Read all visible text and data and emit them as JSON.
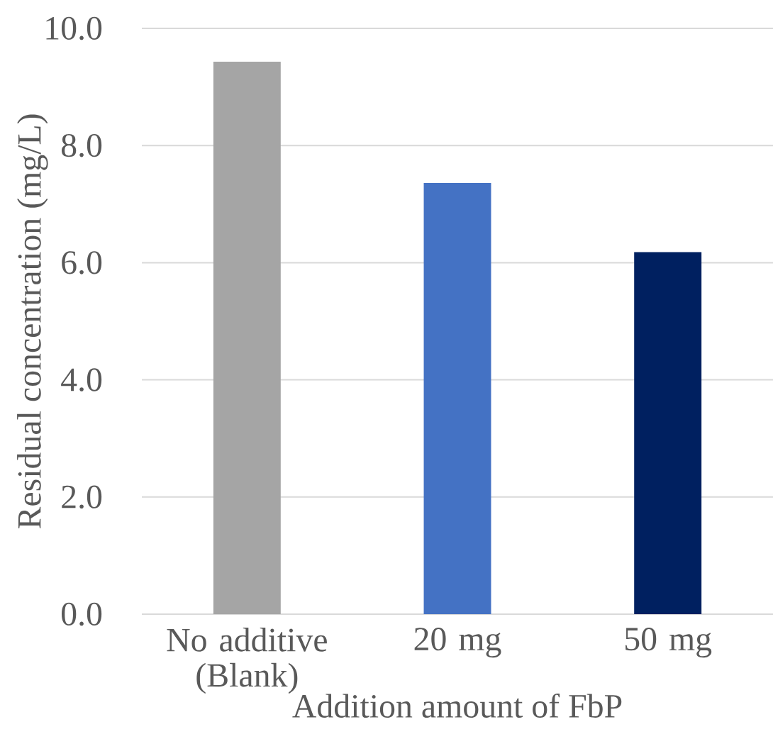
{
  "chart_data": {
    "type": "bar",
    "xlabel": "Addition amount of FbP",
    "ylabel": "Residual concentration (mg/L)",
    "categories": [
      "No additive (Blank)",
      "20 mg",
      "50 mg"
    ],
    "values": [
      9.43,
      7.36,
      6.18
    ],
    "colors": [
      "#a5a5a5",
      "#4472c4",
      "#002060"
    ],
    "ylim": [
      0,
      10
    ],
    "yticks": [
      {
        "value": 0,
        "label": "0.0"
      },
      {
        "value": 2,
        "label": "2.0"
      },
      {
        "value": 4,
        "label": "4.0"
      },
      {
        "value": 6,
        "label": "6.0"
      },
      {
        "value": 8,
        "label": "8.0"
      },
      {
        "value": 10,
        "label": "10.0"
      }
    ],
    "grid": "y"
  }
}
